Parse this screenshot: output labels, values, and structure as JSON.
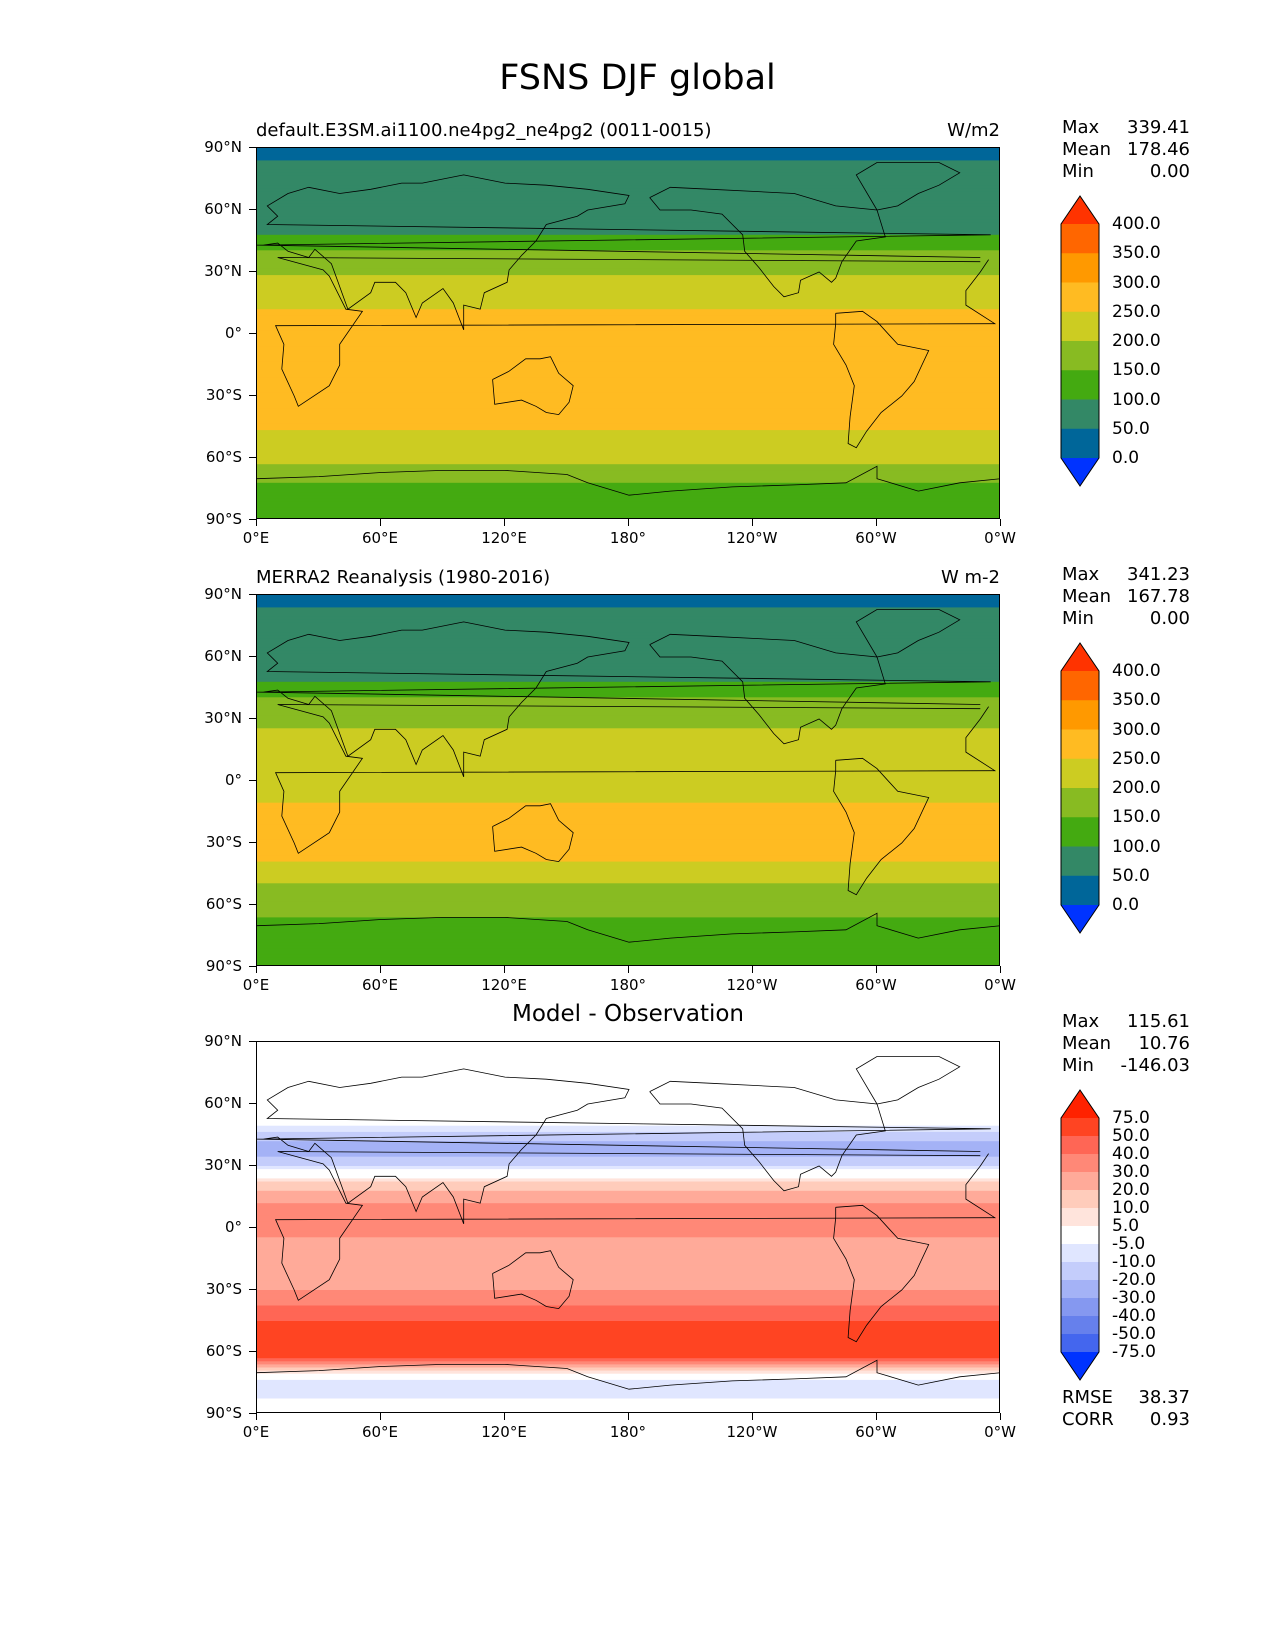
{
  "title": "FSNS DJF global",
  "x_tick_labels": [
    "0°E",
    "60°E",
    "120°E",
    "180°",
    "120°W",
    "60°W",
    "0°W"
  ],
  "y_tick_labels": [
    "90°N",
    "60°N",
    "30°N",
    "0°",
    "30°S",
    "60°S",
    "90°S"
  ],
  "panels": [
    {
      "title_left": "default.E3SM.ai1100.ne4pg2_ne4pg2 (0011-0015)",
      "title_right": "W/m2",
      "title_center": "",
      "stats": [
        {
          "label": "Max",
          "value": "339.41"
        },
        {
          "label": "Mean",
          "value": "178.46"
        },
        {
          "label": "Min",
          "value": "0.00"
        }
      ],
      "footer_stats": []
    },
    {
      "title_left": "MERRA2 Reanalysis (1980-2016)",
      "title_right": "W m-2",
      "title_center": "",
      "stats": [
        {
          "label": "Max",
          "value": "341.23"
        },
        {
          "label": "Mean",
          "value": "167.78"
        },
        {
          "label": "Min",
          "value": "0.00"
        }
      ],
      "footer_stats": []
    },
    {
      "title_left": "",
      "title_right": "",
      "title_center": "Model - Observation",
      "stats": [
        {
          "label": "Max",
          "value": "115.61"
        },
        {
          "label": "Mean",
          "value": "10.76"
        },
        {
          "label": "Min",
          "value": "-146.03"
        }
      ],
      "footer_stats": [
        {
          "label": "RMSE",
          "value": "38.37"
        },
        {
          "label": "CORR",
          "value": "0.93"
        }
      ]
    }
  ],
  "colorbars": {
    "field": {
      "labels": [
        "400.0",
        "350.0",
        "300.0",
        "250.0",
        "200.0",
        "150.0",
        "100.0",
        "50.0",
        "0.0"
      ],
      "colors": [
        "#ff3300",
        "#ff6600",
        "#ff9900",
        "#ffbb22",
        "#cccc22",
        "#88bb22",
        "#44aa11",
        "#338866",
        "#006699",
        "#0033ff"
      ]
    },
    "diff": {
      "labels": [
        "75.0",
        "50.0",
        "40.0",
        "30.0",
        "20.0",
        "10.0",
        "5.0",
        "-5.0",
        "-10.0",
        "-20.0",
        "-30.0",
        "-40.0",
        "-50.0",
        "-75.0"
      ],
      "colors": [
        "#ff2200",
        "#ff4422",
        "#ff6655",
        "#ff8877",
        "#ffaa99",
        "#ffccbb",
        "#ffe4dc",
        "#ffffff",
        "#e0e6ff",
        "#c4cdfb",
        "#a4b2f6",
        "#8598f0",
        "#6680ec",
        "#4466ee",
        "#0033ff"
      ]
    }
  },
  "chart_data": [
    {
      "type": "heatmap",
      "title": "default.E3SM.ai1100.ne4pg2_ne4pg2 (0011-0015)",
      "units": "W/m2",
      "x_range": [
        0,
        360
      ],
      "y_range": [
        -90,
        90
      ],
      "x_ticks": [
        "0°E",
        "60°E",
        "120°E",
        "180°",
        "120°W",
        "60°W",
        "0°W"
      ],
      "y_ticks": [
        "90°N",
        "60°N",
        "30°N",
        "0°",
        "30°S",
        "60°S",
        "90°S"
      ],
      "levels": [
        0,
        50,
        100,
        150,
        200,
        250,
        300,
        350,
        400
      ],
      "zonal_profile": {
        "lat": [
          90,
          85,
          82,
          60,
          50,
          45,
          38,
          33,
          28,
          22,
          15,
          8,
          0,
          -8,
          -15,
          -22,
          -30,
          -38,
          -45,
          -52,
          -60,
          -65,
          -70,
          -75,
          -80,
          -90
        ],
        "value": [
          10,
          10,
          80,
          80,
          80,
          125,
          160,
          180,
          205,
          225,
          245,
          255,
          250,
          262,
          262,
          265,
          262,
          258,
          252,
          240,
          220,
          190,
          155,
          140,
          120,
          120
        ]
      },
      "stats": {
        "max": 339.41,
        "mean": 178.46,
        "min": 0.0
      }
    },
    {
      "type": "heatmap",
      "title": "MERRA2 Reanalysis (1980-2016)",
      "units": "W m-2",
      "x_range": [
        0,
        360
      ],
      "y_range": [
        -90,
        90
      ],
      "x_ticks": [
        "0°E",
        "60°E",
        "120°E",
        "180°",
        "120°W",
        "60°W",
        "0°W"
      ],
      "y_ticks": [
        "90°N",
        "60°N",
        "30°N",
        "0°",
        "30°S",
        "60°S",
        "90°S"
      ],
      "levels": [
        0,
        50,
        100,
        150,
        200,
        250,
        300,
        350,
        400
      ],
      "zonal_profile": {
        "lat": [
          90,
          85,
          82,
          60,
          50,
          45,
          38,
          30,
          22,
          15,
          8,
          0,
          -8,
          -15,
          -22,
          -30,
          -38,
          -45,
          -52,
          -60,
          -65,
          -70,
          -75,
          -80,
          -90
        ],
        "value": [
          10,
          10,
          80,
          80,
          85,
          125,
          165,
          185,
          210,
          215,
          200,
          215,
          245,
          258,
          262,
          260,
          252,
          225,
          190,
          170,
          155,
          140,
          120,
          110,
          110
        ]
      },
      "stats": {
        "max": 341.23,
        "mean": 167.78,
        "min": 0.0
      }
    },
    {
      "type": "heatmap",
      "title": "Model - Observation",
      "x_range": [
        0,
        360
      ],
      "y_range": [
        -90,
        90
      ],
      "x_ticks": [
        "0°E",
        "60°E",
        "120°E",
        "180°",
        "120°W",
        "60°W",
        "0°W"
      ],
      "y_ticks": [
        "90°N",
        "60°N",
        "30°N",
        "0°",
        "30°S",
        "60°S",
        "90°S"
      ],
      "levels": [
        -75,
        -50,
        -40,
        -30,
        -20,
        -10,
        -5,
        5,
        10,
        20,
        30,
        40,
        50,
        75
      ],
      "zonal_profile": {
        "lat": [
          90,
          60,
          55,
          48,
          40,
          34,
          28,
          20,
          12,
          5,
          0,
          -8,
          -15,
          -22,
          -30,
          -38,
          -45,
          -52,
          -58,
          -62,
          -66,
          -70,
          -75,
          -82,
          -90
        ],
        "value": [
          0,
          0,
          2,
          -8,
          -25,
          -20,
          -5,
          15,
          30,
          40,
          35,
          25,
          20,
          25,
          30,
          40,
          50,
          60,
          70,
          55,
          30,
          5,
          -8,
          -5,
          0
        ]
      },
      "stats": {
        "max": 115.61,
        "mean": 10.76,
        "min": -146.03,
        "rmse": 38.37,
        "corr": 0.93
      }
    }
  ]
}
